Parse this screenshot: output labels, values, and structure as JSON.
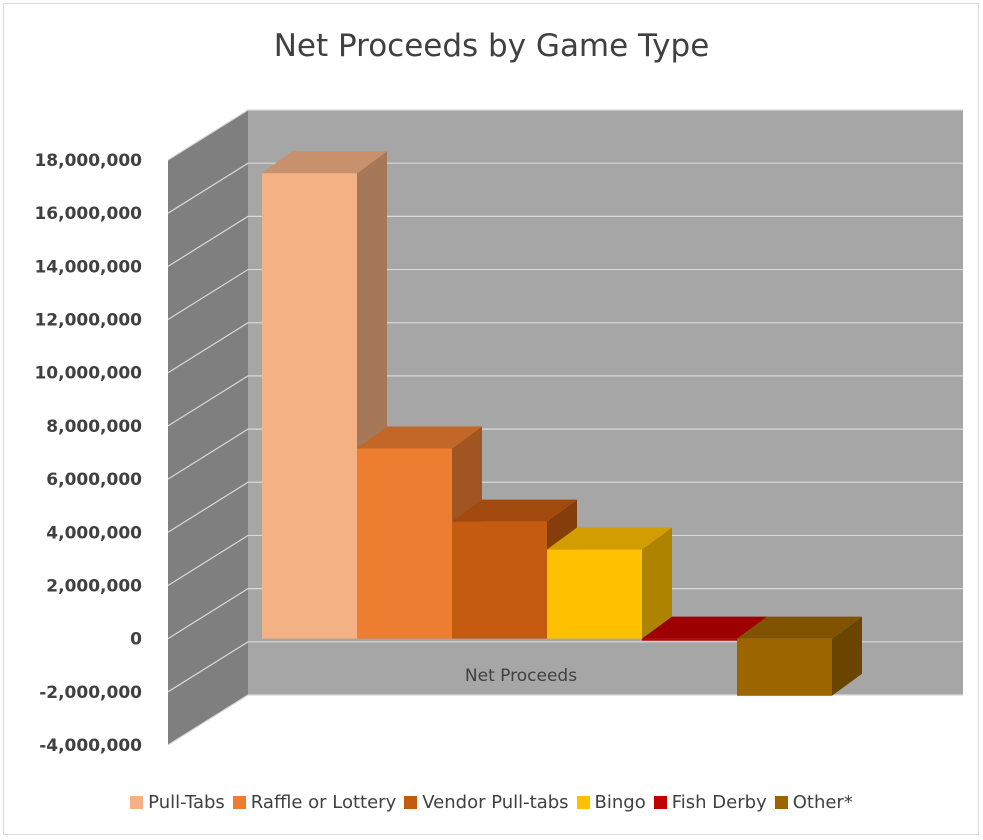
{
  "chart_data": {
    "type": "bar",
    "title": "Net Proceeds by Game Type",
    "categories": [
      "Net Proceeds"
    ],
    "series": [
      {
        "name": "Pull-Tabs",
        "values": [
          17500000
        ],
        "color": "#f4b183"
      },
      {
        "name": "Raffle or Lottery",
        "values": [
          7150000
        ],
        "color": "#ed7d31"
      },
      {
        "name": "Vendor Pull-tabs",
        "values": [
          4400000
        ],
        "color": "#c55a11"
      },
      {
        "name": "Bingo",
        "values": [
          3350000
        ],
        "color": "#ffc000"
      },
      {
        "name": "Fish Derby",
        "values": [
          -10000
        ],
        "color": "#c00000"
      },
      {
        "name": "Other*",
        "values": [
          -2150000
        ],
        "color": "#9c6500"
      }
    ],
    "ylim": [
      -4000000,
      18000000
    ],
    "yticks": [
      "18,000,000",
      "16,000,000",
      "14,000,000",
      "12,000,000",
      "10,000,000",
      "8,000,000",
      "6,000,000",
      "4,000,000",
      "2,000,000",
      "0",
      "-2,000,000",
      "-4,000,000"
    ],
    "ytick_values": [
      18000000,
      16000000,
      14000000,
      12000000,
      10000000,
      8000000,
      6000000,
      4000000,
      2000000,
      0,
      -2000000,
      -4000000
    ],
    "grid": true,
    "legend_position": "bottom",
    "style": "3d-column"
  }
}
